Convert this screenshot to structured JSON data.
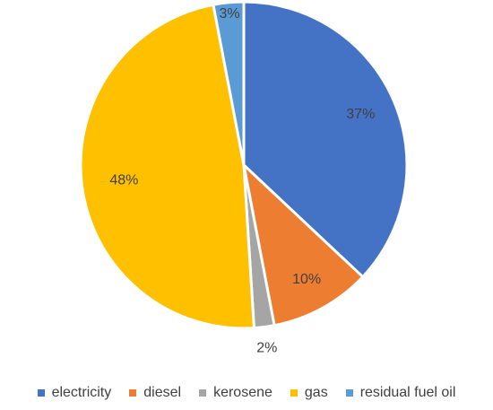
{
  "chart_data": {
    "type": "pie",
    "slices": [
      {
        "name": "electricity",
        "value": 37,
        "label": "37%",
        "color": "#4472C4"
      },
      {
        "name": "diesel",
        "value": 10,
        "label": "10%",
        "color": "#ED7D31"
      },
      {
        "name": "kerosene",
        "value": 2,
        "label": "2%",
        "color": "#A5A5A5"
      },
      {
        "name": "gas",
        "value": 48,
        "label": "48%",
        "color": "#FFC000"
      },
      {
        "name": "residual fuel oil",
        "value": 3,
        "label": "3%",
        "color": "#5B9BD5"
      }
    ],
    "start_angle": "12 o'clock",
    "direction": "clockwise",
    "legend_position": "bottom"
  }
}
